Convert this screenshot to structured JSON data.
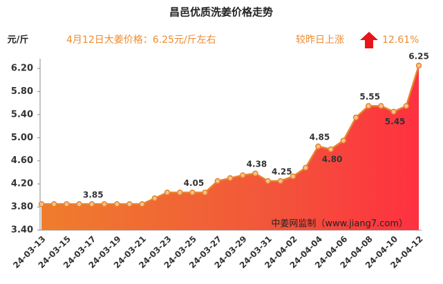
{
  "chart_data": {
    "type": "line",
    "title": "昌邑优质洗姜价格走势",
    "y_unit": "元/斤",
    "annotation": "4月12日大姜价格：6.25元/斤左右",
    "change_label": "较昨日上涨",
    "change_value": "12.61%",
    "watermark": "中姜网监制（www.jiang7.com）",
    "categories": [
      "24-03-13",
      null,
      "24-03-15",
      null,
      "24-03-17",
      null,
      "24-03-19",
      null,
      "24-03-21",
      null,
      "24-03-23",
      null,
      "24-03-25",
      null,
      "24-03-27",
      null,
      "24-03-29",
      null,
      "24-03-31",
      null,
      "24-04-02",
      null,
      "24-04-04",
      null,
      "24-04-06",
      null,
      "24-04-08",
      null,
      "24-04-10",
      null,
      "24-04-12"
    ],
    "values": [
      3.85,
      3.85,
      3.85,
      3.85,
      3.85,
      3.85,
      3.85,
      3.85,
      3.85,
      3.95,
      4.05,
      4.05,
      4.05,
      4.05,
      4.25,
      4.3,
      4.35,
      4.38,
      4.25,
      4.25,
      4.33,
      4.48,
      4.85,
      4.8,
      4.95,
      5.35,
      5.55,
      5.55,
      5.45,
      5.55,
      6.25
    ],
    "value_labels": [
      null,
      null,
      null,
      null,
      "3.85",
      null,
      null,
      null,
      null,
      null,
      null,
      null,
      "4.05",
      null,
      null,
      null,
      null,
      "4.38",
      null,
      "4.25",
      null,
      null,
      "4.85",
      "4.80",
      null,
      null,
      "5.55",
      null,
      "5.45",
      null,
      "6.25"
    ],
    "color": "#e8822a",
    "ylim": [
      3.4,
      6.2
    ],
    "yticks": [
      {
        "value": 3.4,
        "label": "3.40"
      },
      {
        "value": 3.8,
        "label": "3.80"
      },
      {
        "value": 4.2,
        "label": "4.20"
      },
      {
        "value": 4.6,
        "label": "4.60"
      },
      {
        "value": 5.0,
        "label": "5.00"
      },
      {
        "value": 5.4,
        "label": "5.40"
      },
      {
        "value": 5.8,
        "label": "5.80"
      },
      {
        "value": 6.2,
        "label": "6.20"
      }
    ],
    "grid": false
  }
}
